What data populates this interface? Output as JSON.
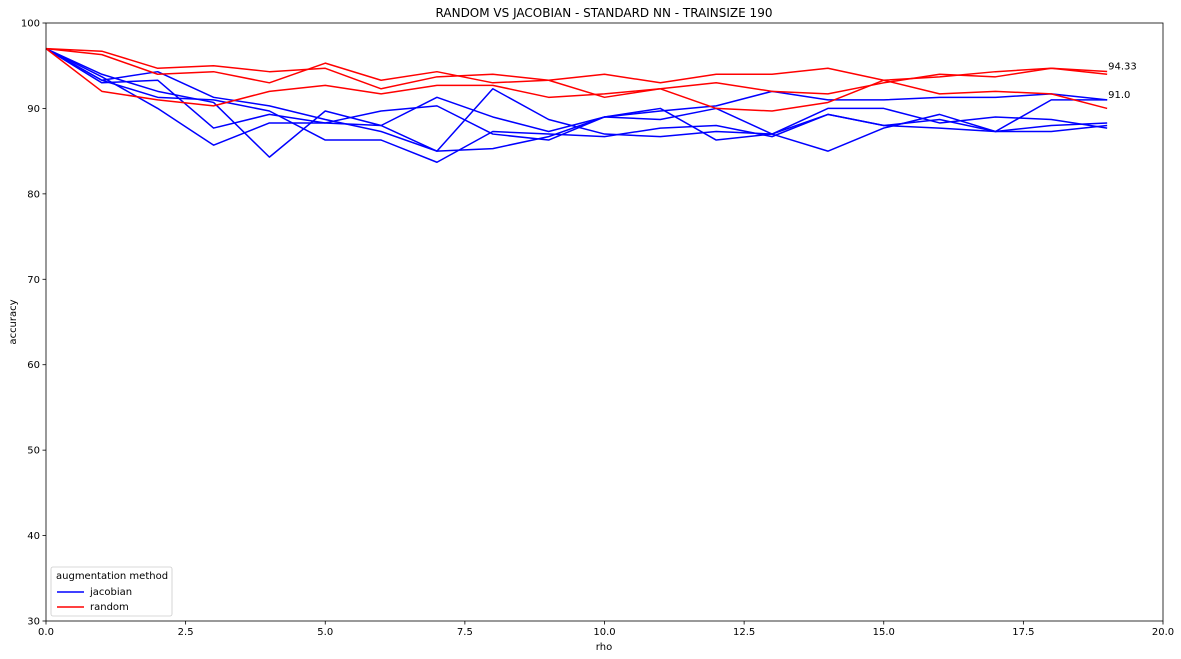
{
  "chart_data": {
    "type": "line",
    "title": "RANDOM VS JACOBIAN - STANDARD NN - TRAINSIZE 190",
    "xlabel": "rho",
    "ylabel": "accuracy",
    "xlim": [
      0,
      20
    ],
    "ylim": [
      30,
      100
    ],
    "x_ticks": [
      "0.0",
      "2.5",
      "5.0",
      "7.5",
      "10.0",
      "12.5",
      "15.0",
      "17.5",
      "20.0"
    ],
    "y_ticks": [
      "30",
      "40",
      "50",
      "60",
      "70",
      "80",
      "90",
      "100"
    ],
    "grid": false,
    "legend": {
      "title": "augmentation method",
      "position": "lower-left",
      "entries": [
        {
          "label": "jacobian",
          "color": "#0000ff"
        },
        {
          "label": "random",
          "color": "#ff0000"
        }
      ]
    },
    "x": [
      0,
      1,
      2,
      3,
      4,
      5,
      6,
      7,
      8,
      9,
      10,
      11,
      12,
      13,
      14,
      15,
      16,
      17,
      18,
      19
    ],
    "series": [
      {
        "group": "jacobian",
        "color": "#0000ff",
        "values": [
          97.0,
          93.0,
          93.3,
          87.7,
          89.3,
          88.3,
          89.7,
          90.3,
          87.0,
          86.3,
          89.0,
          90.0,
          86.3,
          87.0,
          90.0,
          90.0,
          88.3,
          89.0,
          88.7,
          87.7
        ]
      },
      {
        "group": "jacobian",
        "color": "#0000ff",
        "values": [
          97.0,
          93.7,
          90.0,
          85.7,
          88.3,
          88.3,
          88.0,
          91.3,
          89.0,
          87.3,
          89.0,
          89.7,
          90.3,
          92.0,
          91.0,
          91.0,
          91.3,
          91.3,
          91.7,
          91.0
        ]
      },
      {
        "group": "jacobian",
        "color": "#0000ff",
        "values": [
          97.0,
          94.0,
          92.0,
          90.7,
          84.3,
          89.7,
          88.0,
          85.0,
          85.3,
          86.7,
          89.0,
          88.7,
          90.0,
          87.0,
          85.0,
          87.7,
          89.3,
          87.3,
          91.0,
          91.0
        ]
      },
      {
        "group": "jacobian",
        "color": "#0000ff",
        "values": [
          97.0,
          93.3,
          91.3,
          91.0,
          89.7,
          86.3,
          86.3,
          83.7,
          87.3,
          87.0,
          86.7,
          87.7,
          88.0,
          86.7,
          89.3,
          88.0,
          88.7,
          87.3,
          87.3,
          88.0
        ]
      },
      {
        "group": "jacobian",
        "color": "#0000ff",
        "values": [
          97.0,
          93.3,
          94.3,
          91.3,
          90.3,
          88.7,
          87.3,
          85.0,
          92.3,
          88.7,
          87.0,
          86.7,
          87.3,
          87.0,
          89.3,
          88.0,
          87.7,
          87.3,
          88.0,
          88.3
        ]
      },
      {
        "group": "random",
        "color": "#ff0000",
        "values": [
          97.0,
          96.7,
          94.7,
          95.0,
          94.3,
          94.7,
          92.3,
          93.7,
          94.0,
          93.3,
          91.3,
          92.3,
          93.0,
          92.0,
          91.7,
          93.0,
          94.0,
          93.7,
          94.7,
          94.0
        ]
      },
      {
        "group": "random",
        "color": "#ff0000",
        "values": [
          97.0,
          92.0,
          91.0,
          90.3,
          92.0,
          92.7,
          91.7,
          92.7,
          92.7,
          91.3,
          91.7,
          92.3,
          90.0,
          89.7,
          90.7,
          93.3,
          91.7,
          92.0,
          91.7,
          90.0
        ]
      },
      {
        "group": "random",
        "color": "#ff0000",
        "values": [
          97.0,
          96.3,
          94.0,
          94.3,
          93.0,
          95.3,
          93.3,
          94.3,
          93.0,
          93.3,
          94.0,
          93.0,
          94.0,
          94.0,
          94.7,
          93.3,
          93.7,
          94.3,
          94.7,
          94.33
        ]
      }
    ],
    "annotations": [
      {
        "text": "94.33",
        "x": 19,
        "y": 94.33
      },
      {
        "text": "91.0",
        "x": 19,
        "y": 91.0
      }
    ]
  }
}
